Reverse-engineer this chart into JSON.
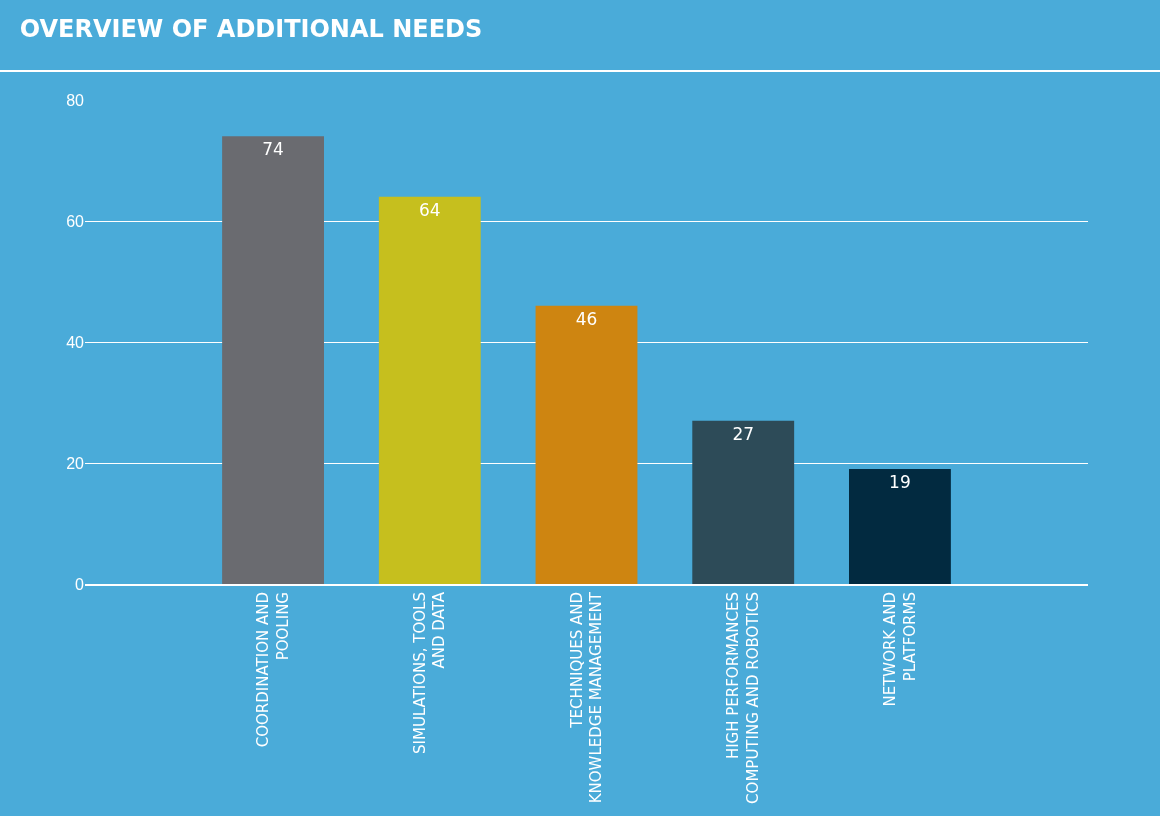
{
  "chart_data": {
    "type": "bar",
    "title": "OVERVIEW OF ADDITIONAL NEEDS",
    "categories": [
      "COORDINATION AND\nPOOLING",
      "SIMULATIONS, TOOLS\nAND DATA",
      "TECHNIQUES AND\nKNOWLEDGE MANAGEMENT",
      "HIGH PERFORMANCES\nCOMPUTING AND ROBOTICS",
      "NETWORK AND\nPLATFORMS"
    ],
    "values": [
      74,
      64,
      46,
      27,
      19
    ],
    "colors": [
      "#6a6b70",
      "#c6bf1e",
      "#ce8511",
      "#2d4b58",
      "#022a40"
    ],
    "ylim": [
      0,
      80
    ],
    "yticks": [
      0,
      20,
      40,
      60,
      80
    ],
    "grid": "y",
    "data_labels": true
  }
}
